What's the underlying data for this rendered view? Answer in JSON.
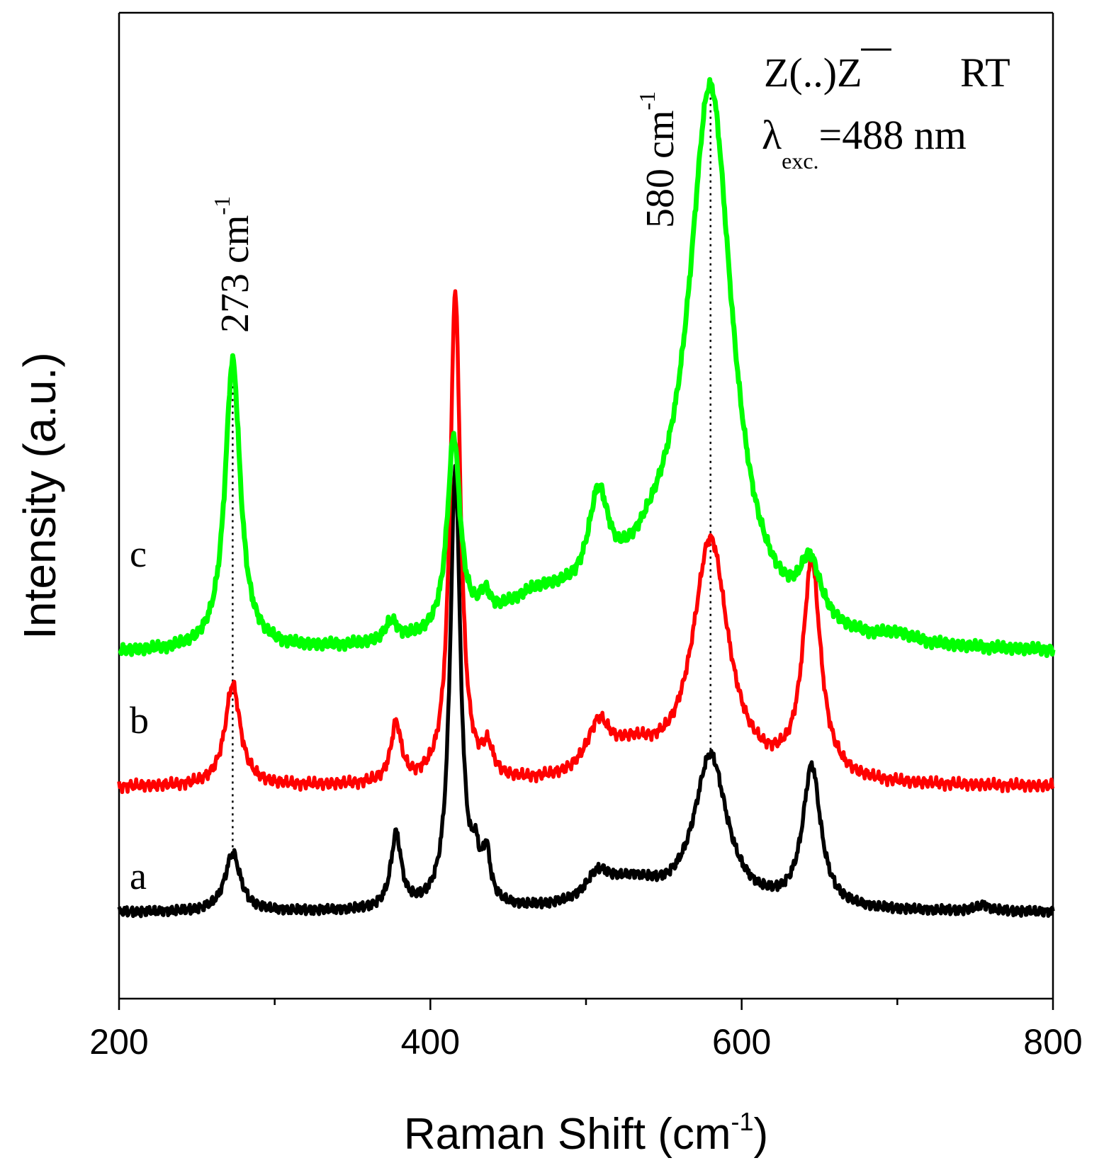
{
  "chart_data": {
    "type": "line",
    "title": "",
    "xlabel": "Raman Shift (cm",
    "xlabel_sup": "-1",
    "xlabel_end": ")",
    "ylabel": "Intensity (a.u.)",
    "xlim": [
      200,
      800
    ],
    "ylim": [
      0,
      12.6
    ],
    "x_ticks": [
      "200",
      "400",
      "600",
      "800"
    ],
    "x_tick_values": [
      200,
      400,
      600,
      800
    ],
    "x_minor_tick_values": [
      300,
      500,
      700
    ],
    "y_ticks_shown": false,
    "grid": false,
    "legend": "none",
    "annotations": {
      "geometry": "Z(..)",
      "geometry_bar": "Z",
      "temperature": "RT",
      "lambda_symbol": "λ",
      "lambda_sub": "exc.",
      "lambda_value": "=488 nm",
      "peak1_label": "273 cm",
      "peak1_sup": "-1",
      "peak1_x": 273,
      "peak2_label": "580 cm",
      "peak2_sup": "-1",
      "peak2_x": 580
    },
    "series": [
      {
        "name": "a",
        "color": "#000000",
        "baseline": 1.1,
        "peaks": [
          {
            "x": 273,
            "height": 0.75,
            "width": 6
          },
          {
            "x": 378,
            "height": 0.95,
            "width": 4
          },
          {
            "x": 416,
            "height": 5.6,
            "width": 4
          },
          {
            "x": 429,
            "height": 0.45,
            "width": 3
          },
          {
            "x": 436,
            "height": 0.6,
            "width": 3
          },
          {
            "x": 508,
            "height": 0.35,
            "width": 10
          },
          {
            "x": 530,
            "height": 0.3,
            "width": 20
          },
          {
            "x": 580,
            "height": 1.95,
            "width": 13
          },
          {
            "x": 645,
            "height": 1.8,
            "width": 7
          },
          {
            "x": 755,
            "height": 0.08,
            "width": 5
          }
        ]
      },
      {
        "name": "b",
        "color": "#ff0000",
        "baseline": 2.7,
        "peaks": [
          {
            "x": 273,
            "height": 1.3,
            "width": 6
          },
          {
            "x": 378,
            "height": 0.75,
            "width": 4
          },
          {
            "x": 416,
            "height": 6.3,
            "width": 4
          },
          {
            "x": 437,
            "height": 0.35,
            "width": 4
          },
          {
            "x": 508,
            "height": 0.6,
            "width": 9
          },
          {
            "x": 530,
            "height": 0.35,
            "width": 20
          },
          {
            "x": 580,
            "height": 3.1,
            "width": 14
          },
          {
            "x": 645,
            "height": 2.75,
            "width": 7
          }
        ]
      },
      {
        "name": "c",
        "color": "#00ff00",
        "baseline": 4.4,
        "peaks": [
          {
            "x": 273,
            "height": 3.7,
            "width": 6
          },
          {
            "x": 375,
            "height": 0.25,
            "width": 5
          },
          {
            "x": 415,
            "height": 2.5,
            "width": 5
          },
          {
            "x": 435,
            "height": 0.3,
            "width": 4
          },
          {
            "x": 470,
            "height": 0.55,
            "width": 35
          },
          {
            "x": 508,
            "height": 1.25,
            "width": 8
          },
          {
            "x": 545,
            "height": 0.7,
            "width": 30
          },
          {
            "x": 580,
            "height": 6.9,
            "width": 17
          },
          {
            "x": 644,
            "height": 0.75,
            "width": 8
          },
          {
            "x": 700,
            "height": 0.1,
            "width": 12
          }
        ]
      }
    ]
  }
}
